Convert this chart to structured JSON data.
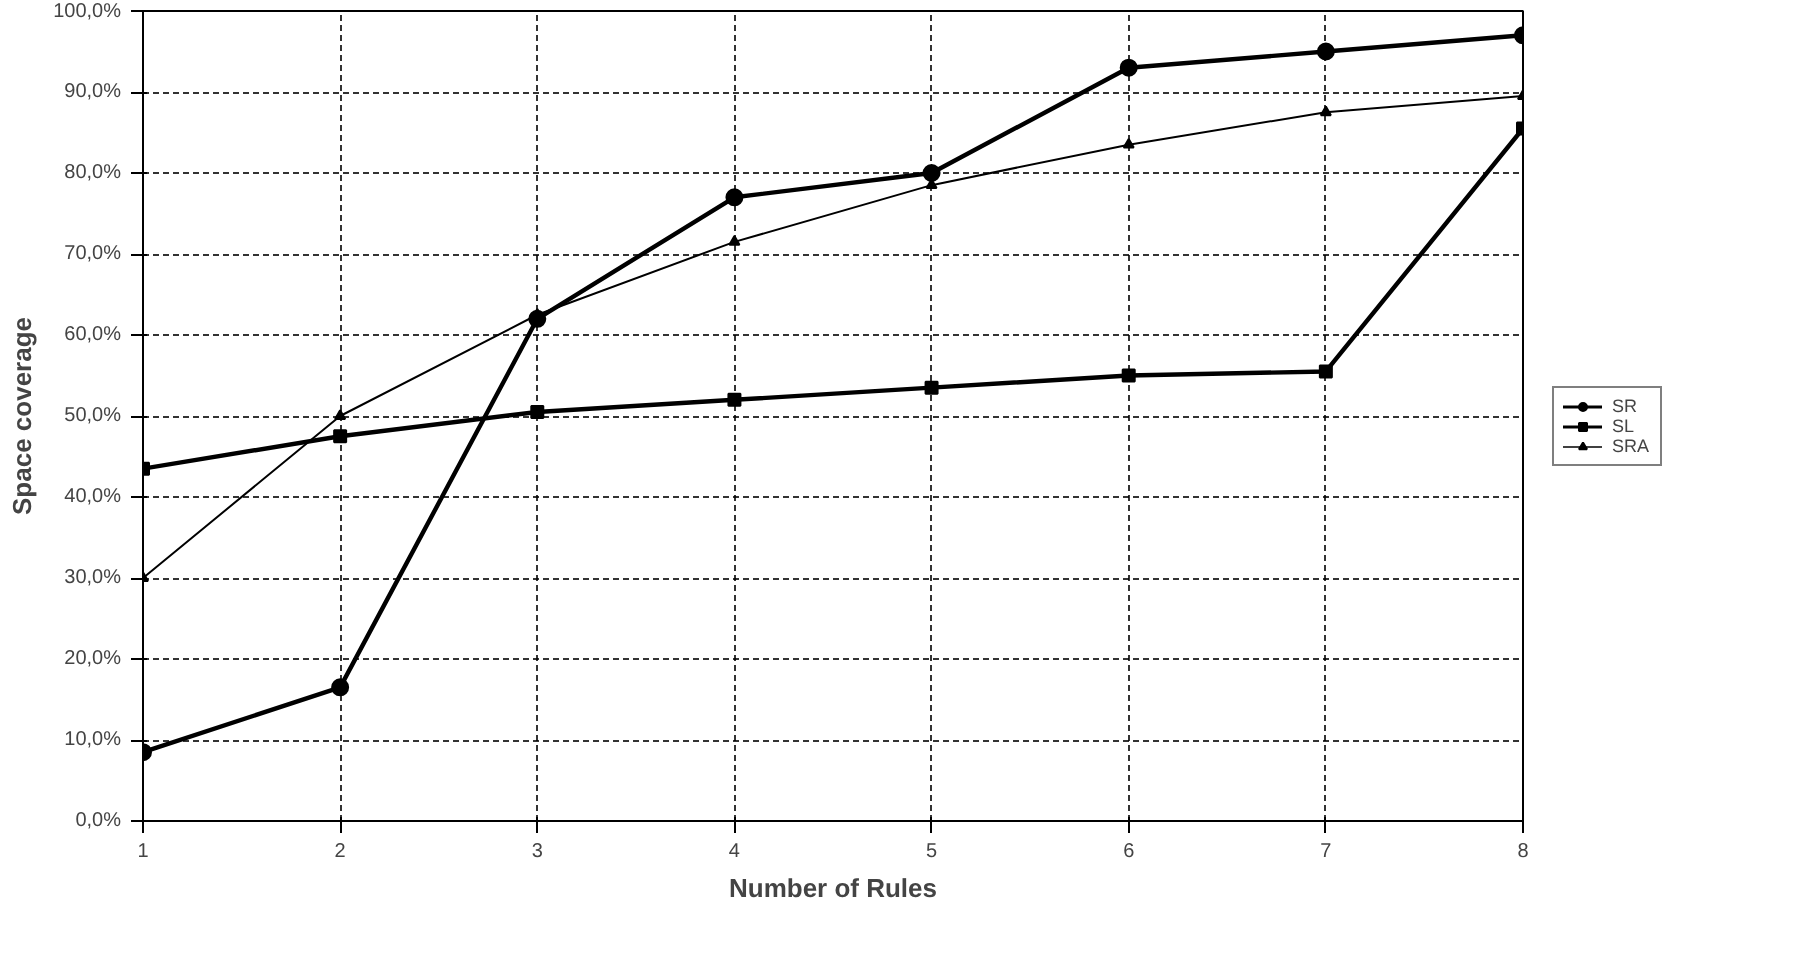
{
  "chart_data": {
    "type": "line",
    "xlabel": "Number of Rules",
    "ylabel": "Space coverage",
    "x": [
      1,
      2,
      3,
      4,
      5,
      6,
      7,
      8
    ],
    "xlim": [
      1,
      8
    ],
    "xticks": [
      1,
      2,
      3,
      4,
      5,
      6,
      7,
      8
    ],
    "ylim": [
      0,
      100
    ],
    "yticks": [
      {
        "value": 0,
        "label": "0,0%"
      },
      {
        "value": 10,
        "label": "10,0%"
      },
      {
        "value": 20,
        "label": "20,0%"
      },
      {
        "value": 30,
        "label": "30,0%"
      },
      {
        "value": 40,
        "label": "40,0%"
      },
      {
        "value": 50,
        "label": "50,0%"
      },
      {
        "value": 60,
        "label": "60,0%"
      },
      {
        "value": 70,
        "label": "70,0%"
      },
      {
        "value": 80,
        "label": "80,0%"
      },
      {
        "value": 90,
        "label": "90,0%"
      },
      {
        "value": 100,
        "label": "100,0%"
      }
    ],
    "grid": true,
    "legend": "right",
    "line_style": "solid",
    "series": [
      {
        "name": "SR",
        "color": "#000000",
        "marker": "circle",
        "values": [
          8.5,
          16.5,
          62,
          77,
          80,
          93,
          95,
          97
        ]
      },
      {
        "name": "SL",
        "color": "#000000",
        "marker": "square",
        "values": [
          43.5,
          47.5,
          50.5,
          52,
          53.5,
          55,
          55.5,
          85.5
        ]
      },
      {
        "name": "SRA",
        "color": "#000000",
        "marker": "triangle",
        "values": [
          30,
          50,
          62.5,
          71.5,
          78.5,
          83.5,
          87.5,
          89.5
        ]
      }
    ]
  }
}
